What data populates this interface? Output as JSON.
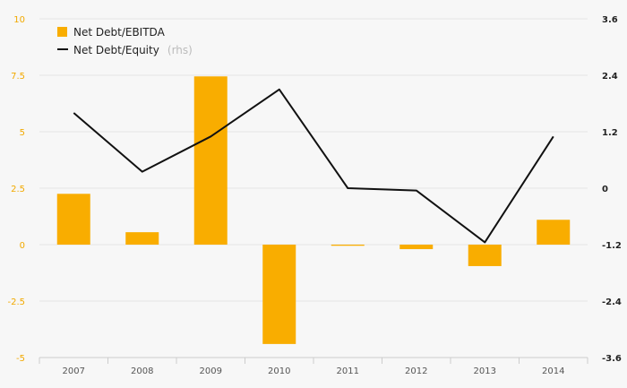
{
  "chart_data": {
    "type": "bar",
    "categories": [
      "2007",
      "2008",
      "2009",
      "2010",
      "2011",
      "2012",
      "2013",
      "2014"
    ],
    "series": [
      {
        "name": "Net Debt/EBITDA",
        "type": "bar",
        "axis": "left",
        "values": [
          2.25,
          0.55,
          7.45,
          -4.4,
          -0.05,
          -0.2,
          -0.95,
          1.1
        ]
      },
      {
        "name": "Net Debt/Equity",
        "name_suffix": "(rhs)",
        "type": "line",
        "axis": "right",
        "values": [
          1.6,
          0.35,
          1.1,
          2.1,
          0.0,
          -0.05,
          -1.15,
          1.1
        ]
      }
    ],
    "y_left": {
      "ticks": [
        "10",
        "7.5",
        "5",
        "2.5",
        "0",
        "-2.5",
        "-5"
      ],
      "ylim": [
        -5,
        10
      ]
    },
    "y_right": {
      "ticks": [
        "3.6",
        "2.4",
        "1.2",
        "0",
        "-1.2",
        "-2.4",
        "-3.6"
      ],
      "ylim": [
        -3.6,
        3.6
      ]
    },
    "legend_position": "top-left",
    "grid": true,
    "colors": {
      "bar": "#f9ad00",
      "line": "#111111",
      "grid": "#e6e6e6",
      "left_axis": "#f2a900"
    }
  }
}
